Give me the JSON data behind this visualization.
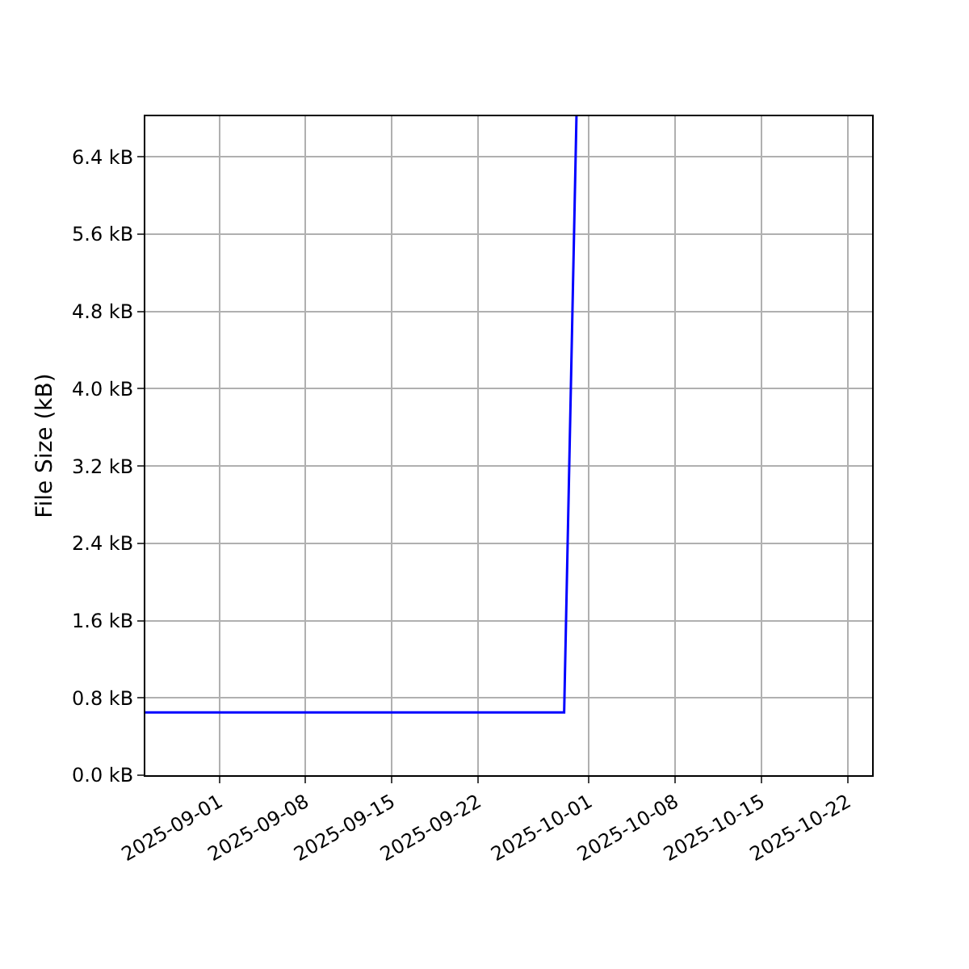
{
  "chart_data": {
    "type": "line",
    "ylabel": "File Size (kB)",
    "x": [
      "2025-08-26",
      "2025-09-29",
      "2025-09-30"
    ],
    "series": [
      {
        "color": "#0000ff",
        "values": [
          0.65,
          0.65,
          6.82
        ]
      }
    ],
    "xlim": [
      "2025-08-26",
      "2025-10-24"
    ],
    "xticks": [
      {
        "value": "2025-09-01",
        "label": "2025-09-01"
      },
      {
        "value": "2025-09-08",
        "label": "2025-09-08"
      },
      {
        "value": "2025-09-15",
        "label": "2025-09-15"
      },
      {
        "value": "2025-09-22",
        "label": "2025-09-22"
      },
      {
        "value": "2025-10-01",
        "label": "2025-10-01"
      },
      {
        "value": "2025-10-08",
        "label": "2025-10-08"
      },
      {
        "value": "2025-10-15",
        "label": "2025-10-15"
      },
      {
        "value": "2025-10-22",
        "label": "2025-10-22"
      }
    ],
    "ylim": [
      0,
      6.82
    ],
    "yticks": [
      {
        "value": 0,
        "label": "0.0 kB"
      },
      {
        "value": 0.8,
        "label": "0.8 kB"
      },
      {
        "value": 1.6,
        "label": "1.6 kB"
      },
      {
        "value": 2.4,
        "label": "2.4 kB"
      },
      {
        "value": 3.2,
        "label": "3.2 kB"
      },
      {
        "value": 4.0,
        "label": "4.0 kB"
      },
      {
        "value": 4.8,
        "label": "4.8 kB"
      },
      {
        "value": 5.6,
        "label": "5.6 kB"
      },
      {
        "value": 6.4,
        "label": "6.4 kB"
      }
    ],
    "grid": true,
    "marker": "none",
    "line_style": "solid"
  }
}
